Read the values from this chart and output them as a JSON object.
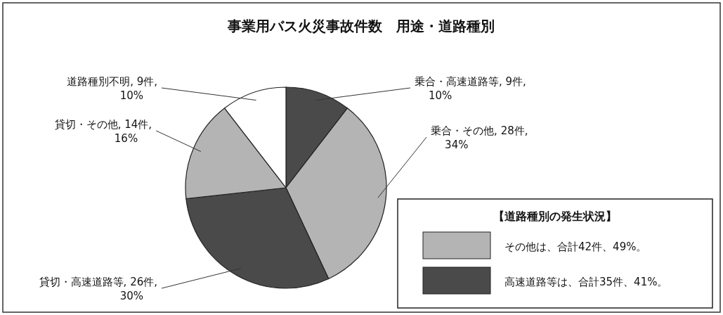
{
  "chart_data": {
    "type": "pie",
    "title": "事業用バス火災事故件数　用途・道路種別",
    "categories": [
      "乗合・高速道路等",
      "乗合・その他",
      "貸切・高速道路等",
      "貸切・その他",
      "道路種別不明"
    ],
    "values": [
      9,
      28,
      26,
      14,
      9
    ],
    "value_labels": [
      ", 9件, 10%",
      ", 28件, 34%",
      ", 26件, 30%",
      ", 14件, 16%",
      ", 9件, 10%"
    ],
    "colors": [
      "#4a4a4a",
      "#b4b4b4",
      "#4a4a4a",
      "#b4b4b4",
      "#ffffff"
    ],
    "legend_title": "【道路種別の発生状況】",
    "annotations": [
      "その他は、合計42件、49%。",
      "高速道路等は、合計35件、41%。"
    ]
  }
}
